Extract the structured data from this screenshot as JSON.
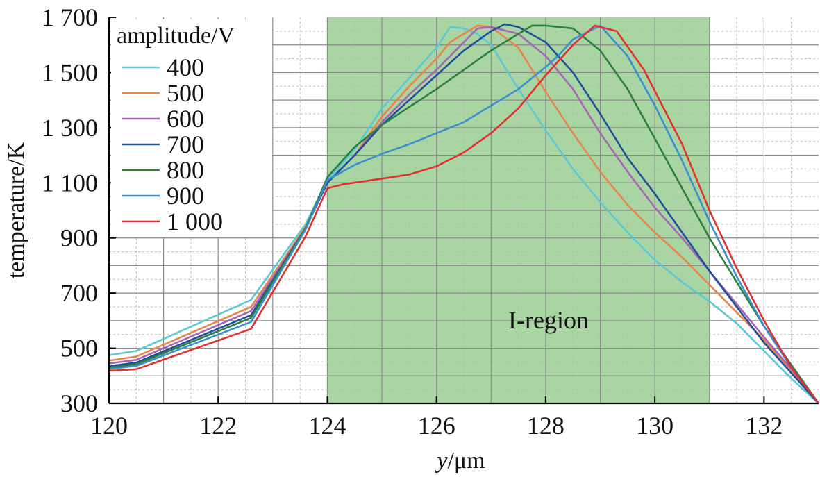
{
  "chart_data": {
    "type": "line",
    "title": "",
    "xlabel_italic": "y",
    "xlabel_unit": "/μm",
    "ylabel": "temperature/K",
    "xlim": [
      120,
      133
    ],
    "ylim": [
      300,
      1700
    ],
    "xticks": [
      120,
      122,
      124,
      126,
      128,
      130,
      132
    ],
    "yticks": [
      300,
      500,
      700,
      900,
      1100,
      1300,
      1500,
      1700
    ],
    "ytick_labels": [
      "300",
      "500",
      "700",
      "900",
      "1 100",
      "1 300",
      "1 500",
      "1 700"
    ],
    "grid": true,
    "minor_grid": true,
    "legend": {
      "title": "amplitude/V",
      "position": "top-left"
    },
    "region": {
      "label": "I-region",
      "x_start": 124,
      "x_end": 131,
      "color": "#a8d5a2"
    },
    "series": [
      {
        "name": "400",
        "color": "#5bc8d4",
        "x": [
          120,
          120.5,
          122.6,
          123.6,
          124.0,
          124.5,
          125.0,
          125.5,
          126.0,
          126.25,
          126.5,
          126.75,
          127.0,
          127.5,
          128.0,
          128.5,
          129.0,
          129.5,
          130.0,
          130.5,
          131.0,
          131.5,
          132.0,
          132.5,
          133.0
        ],
        "y": [
          475,
          490,
          675,
          950,
          1110,
          1220,
          1370,
          1480,
          1590,
          1665,
          1660,
          1640,
          1600,
          1440,
          1290,
          1150,
          1030,
          920,
          820,
          740,
          670,
          590,
          490,
          390,
          300
        ]
      },
      {
        "name": "500",
        "color": "#e8854a",
        "x": [
          120,
          120.5,
          122.6,
          123.6,
          124.0,
          124.5,
          125.0,
          125.5,
          126.0,
          126.25,
          126.75,
          127.0,
          127.5,
          128.0,
          128.5,
          129.0,
          129.5,
          130.0,
          130.5,
          131.0,
          131.5,
          132.0,
          132.5,
          133.0
        ],
        "y": [
          455,
          470,
          650,
          940,
          1100,
          1200,
          1340,
          1450,
          1550,
          1610,
          1670,
          1665,
          1590,
          1430,
          1280,
          1140,
          1020,
          920,
          830,
          730,
          630,
          530,
          420,
          300
        ]
      },
      {
        "name": "600",
        "color": "#a566b5",
        "x": [
          120,
          120.5,
          122.6,
          123.6,
          124.0,
          124.5,
          125.0,
          125.5,
          126.0,
          126.5,
          126.75,
          127.0,
          127.5,
          128.0,
          128.5,
          129.0,
          129.5,
          130.0,
          130.5,
          131.0,
          131.5,
          132.0,
          132.5,
          133.0
        ],
        "y": [
          445,
          458,
          635,
          935,
          1100,
          1200,
          1320,
          1420,
          1510,
          1610,
          1660,
          1665,
          1640,
          1560,
          1440,
          1280,
          1140,
          1010,
          900,
          780,
          660,
          540,
          425,
          300
        ]
      },
      {
        "name": "700",
        "color": "#1f4f9a",
        "x": [
          120,
          120.5,
          122.6,
          123.6,
          124.0,
          124.5,
          125.0,
          125.5,
          126.0,
          126.5,
          127.0,
          127.25,
          127.5,
          128.0,
          128.5,
          129.0,
          129.5,
          130.0,
          130.5,
          131.0,
          131.5,
          132.0,
          132.5,
          133.0
        ],
        "y": [
          435,
          448,
          620,
          935,
          1100,
          1200,
          1310,
          1400,
          1490,
          1580,
          1650,
          1675,
          1665,
          1610,
          1500,
          1350,
          1190,
          1060,
          920,
          780,
          650,
          520,
          410,
          300
        ]
      },
      {
        "name": "800",
        "color": "#2e7f3e",
        "x": [
          120,
          120.5,
          122.6,
          123.6,
          124.0,
          124.5,
          125.0,
          125.5,
          126.0,
          126.5,
          127.0,
          127.5,
          127.75,
          128.0,
          128.5,
          129.0,
          129.5,
          130.0,
          130.5,
          131.0,
          131.5,
          132.0,
          132.5,
          133.0
        ],
        "y": [
          430,
          442,
          610,
          935,
          1120,
          1230,
          1310,
          1375,
          1440,
          1510,
          1580,
          1640,
          1670,
          1670,
          1660,
          1580,
          1440,
          1260,
          1080,
          900,
          740,
          580,
          440,
          300
        ]
      },
      {
        "name": "900",
        "color": "#3a8fd0",
        "x": [
          120,
          120.5,
          122.6,
          123.6,
          124.0,
          124.5,
          125.0,
          125.5,
          126.0,
          126.5,
          127.0,
          127.5,
          128.0,
          128.25,
          128.5,
          129.0,
          129.5,
          130.0,
          130.5,
          131.0,
          131.5,
          132.0,
          132.5,
          133.0
        ],
        "y": [
          425,
          436,
          595,
          930,
          1110,
          1165,
          1205,
          1240,
          1280,
          1320,
          1380,
          1440,
          1520,
          1565,
          1620,
          1670,
          1560,
          1380,
          1180,
          960,
          760,
          580,
          430,
          300
        ]
      },
      {
        "name": "1 000",
        "color": "#e03030",
        "x": [
          120,
          120.5,
          122.6,
          123.6,
          124.0,
          124.3,
          125.0,
          125.5,
          126.0,
          126.5,
          127.0,
          127.5,
          128.0,
          128.5,
          128.9,
          129.3,
          129.8,
          130.5,
          131.0,
          131.5,
          132.0,
          132.5,
          133.0
        ],
        "y": [
          418,
          424,
          570,
          905,
          1080,
          1095,
          1115,
          1130,
          1160,
          1210,
          1280,
          1370,
          1490,
          1600,
          1670,
          1650,
          1510,
          1240,
          1000,
          790,
          600,
          430,
          300
        ]
      }
    ]
  }
}
